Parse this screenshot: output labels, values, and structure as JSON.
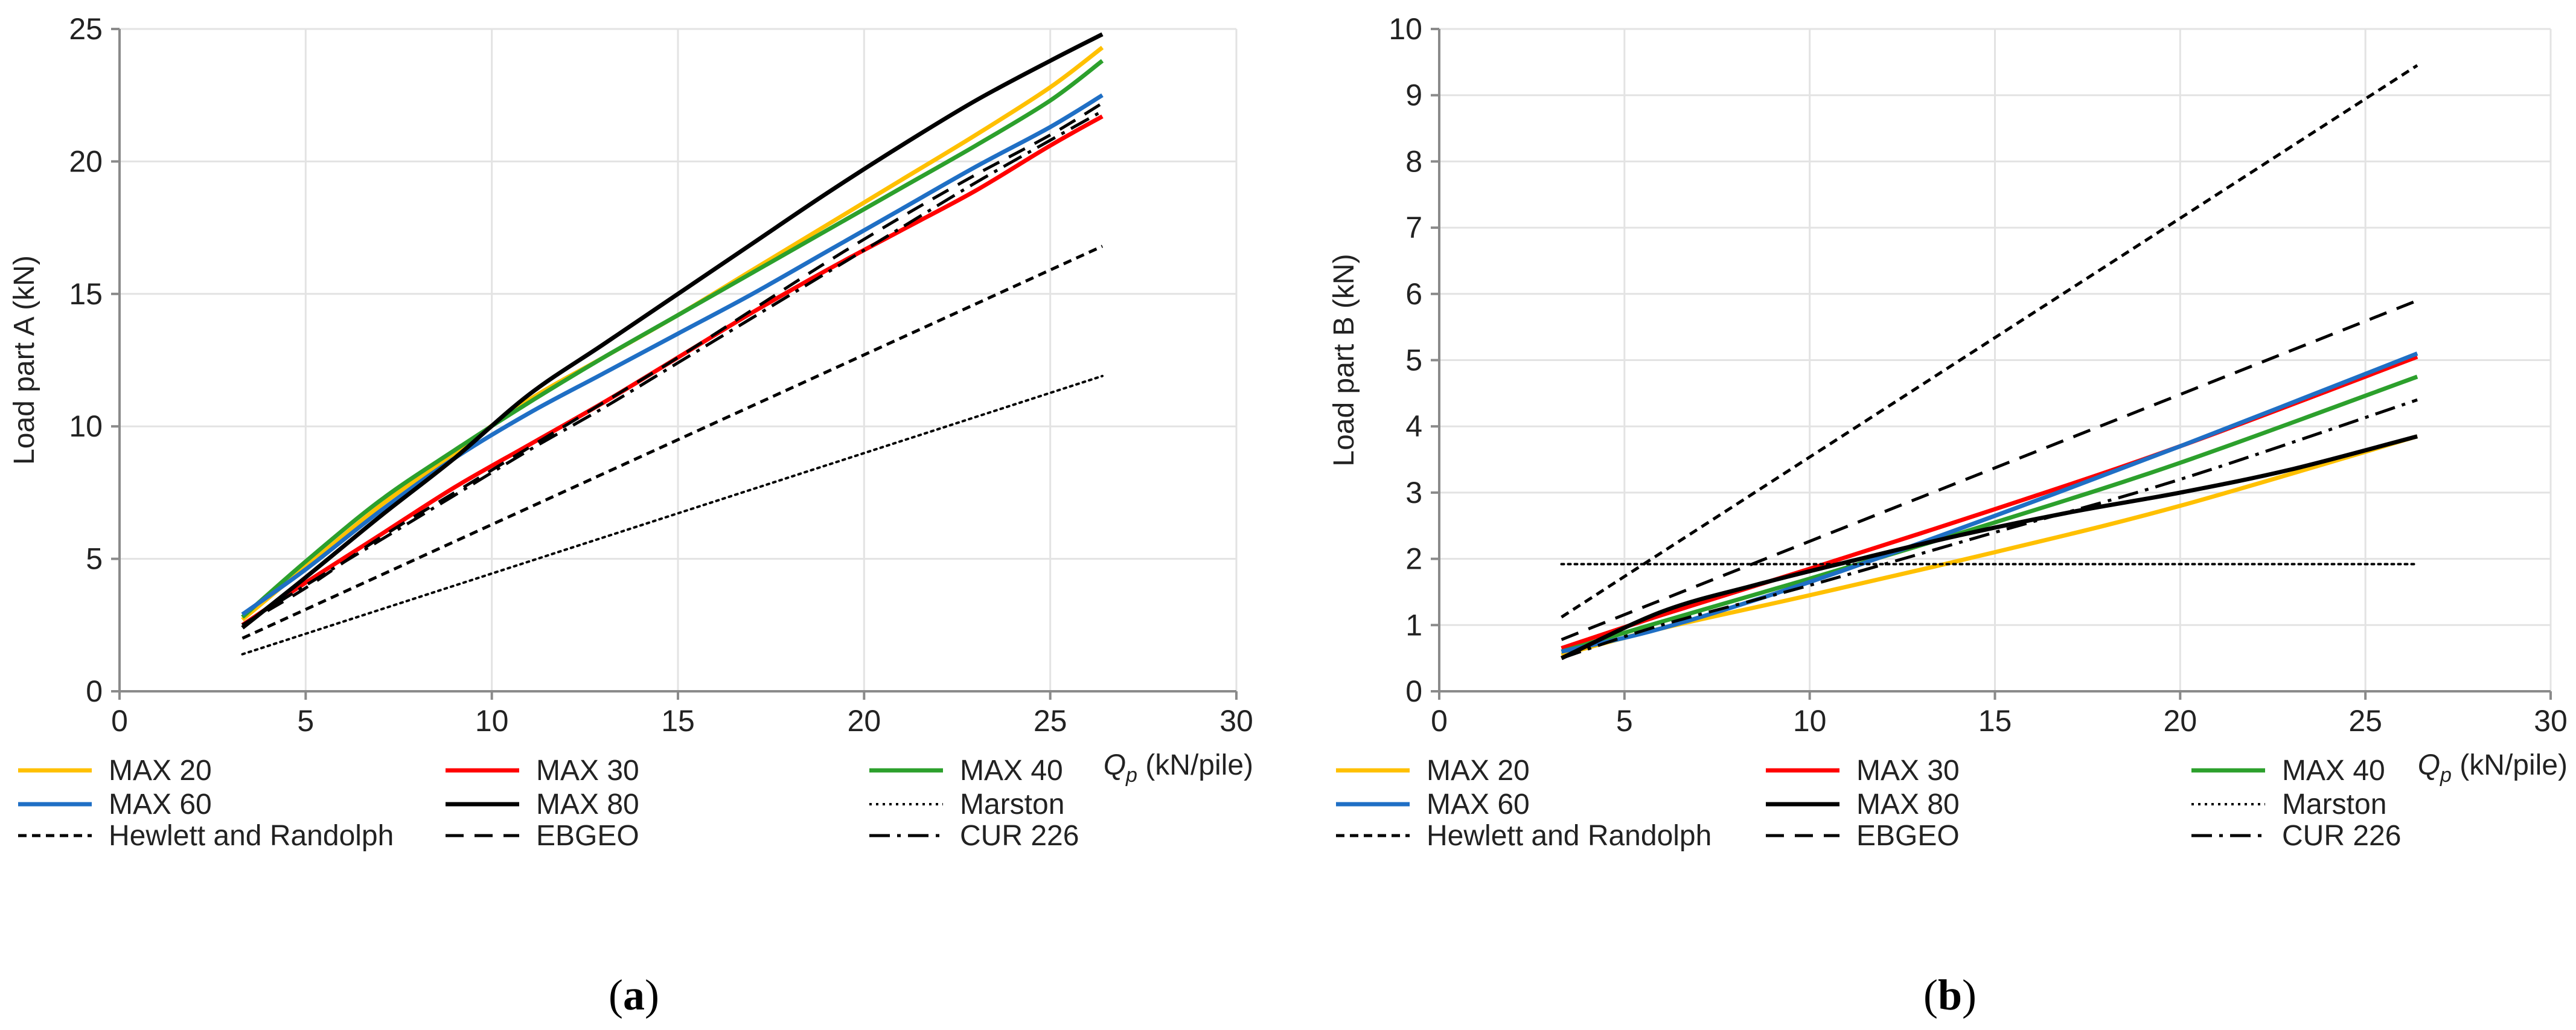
{
  "chart_data": [
    {
      "type": "line",
      "panel_label": "a",
      "title": "",
      "xlabel": {
        "var": "Q",
        "sub": "p",
        "unit": " (kN/pile)"
      },
      "ylabel": "Load part A (kN)",
      "xlim": [
        0,
        30
      ],
      "ylim": [
        0,
        25
      ],
      "xticks": [
        0,
        5,
        10,
        15,
        20,
        25,
        30
      ],
      "yticks": [
        0,
        5,
        10,
        15,
        20,
        25
      ],
      "grid": true,
      "legend_position": "bottom",
      "series": [
        {
          "name": "MAX 20",
          "color": "#FFC000",
          "style": "solid",
          "x": [
            3.3,
            5,
            7,
            9,
            11,
            13,
            15,
            17,
            19,
            21,
            23,
            25,
            26.4
          ],
          "y": [
            2.7,
            4.7,
            7.0,
            9.0,
            11.0,
            12.6,
            14.2,
            15.9,
            17.6,
            19.3,
            21.0,
            22.8,
            24.3
          ]
        },
        {
          "name": "MAX 30",
          "color": "#FF0000",
          "style": "solid",
          "x": [
            3.3,
            5,
            7,
            9,
            11,
            13,
            15,
            17,
            19,
            21,
            23,
            25,
            26.4
          ],
          "y": [
            2.5,
            4.1,
            5.9,
            7.7,
            9.3,
            10.9,
            12.6,
            14.3,
            15.9,
            17.4,
            18.9,
            20.6,
            21.7
          ]
        },
        {
          "name": "MAX 40",
          "color": "#2CA02C",
          "style": "solid",
          "x": [
            3.3,
            5,
            7,
            9,
            11,
            13,
            15,
            17,
            19,
            21,
            23,
            25,
            26.4
          ],
          "y": [
            2.8,
            4.9,
            7.2,
            9.1,
            10.9,
            12.6,
            14.2,
            15.8,
            17.4,
            19.0,
            20.6,
            22.3,
            23.8
          ]
        },
        {
          "name": "MAX 60",
          "color": "#1F6FC5",
          "style": "solid",
          "x": [
            3.3,
            5,
            7,
            9,
            11,
            13,
            15,
            17,
            19,
            21,
            23,
            25,
            26.4
          ],
          "y": [
            2.9,
            4.6,
            6.8,
            8.8,
            10.5,
            12.0,
            13.5,
            15.0,
            16.6,
            18.2,
            19.8,
            21.3,
            22.5
          ]
        },
        {
          "name": "MAX 80",
          "color": "#000000",
          "style": "solid",
          "x": [
            3.3,
            5,
            7,
            9,
            11,
            13,
            15,
            17,
            19,
            21,
            23,
            25,
            26.4
          ],
          "y": [
            2.4,
            4.3,
            6.6,
            8.8,
            11.2,
            13.1,
            15.0,
            16.9,
            18.8,
            20.6,
            22.3,
            23.8,
            24.8
          ]
        },
        {
          "name": "Marston",
          "color": "#000000",
          "style": "dotted",
          "x": [
            3.3,
            26.4
          ],
          "y": [
            1.4,
            11.9
          ]
        },
        {
          "name": "Hewlett and Randolph",
          "color": "#000000",
          "style": "short-dash",
          "x": [
            3.3,
            26.4
          ],
          "y": [
            2.0,
            16.8
          ]
        },
        {
          "name": "EBGEO",
          "color": "#000000",
          "style": "long-dash",
          "x": [
            3.3,
            5,
            7,
            9,
            11,
            13,
            15,
            17,
            19,
            21,
            23,
            25,
            26.4
          ],
          "y": [
            2.5,
            3.9,
            5.8,
            7.5,
            9.2,
            10.9,
            12.6,
            14.4,
            16.2,
            17.9,
            19.5,
            21.0,
            22.2
          ]
        },
        {
          "name": "CUR 226",
          "color": "#000000",
          "style": "dash-dot",
          "x": [
            3.3,
            5,
            7,
            9,
            11,
            13,
            15,
            17,
            19,
            21,
            23,
            25,
            26.4
          ],
          "y": [
            2.5,
            4.0,
            5.7,
            7.4,
            9.1,
            10.7,
            12.4,
            14.1,
            15.8,
            17.5,
            19.2,
            20.8,
            21.9
          ]
        }
      ]
    },
    {
      "type": "line",
      "panel_label": "b",
      "title": "",
      "xlabel": {
        "var": "Q",
        "sub": "p",
        "unit": " (kN/pile)"
      },
      "ylabel": "Load part B (kN)",
      "xlim": [
        0,
        30
      ],
      "ylim": [
        0,
        10
      ],
      "xticks": [
        0,
        5,
        10,
        15,
        20,
        25,
        30
      ],
      "yticks": [
        0,
        1,
        2,
        3,
        4,
        5,
        6,
        7,
        8,
        9,
        10
      ],
      "grid": true,
      "legend_position": "bottom",
      "series": [
        {
          "name": "MAX 20",
          "color": "#FFC000",
          "style": "solid",
          "x": [
            3.3,
            6,
            10,
            15,
            20,
            26.4
          ],
          "y": [
            0.55,
            0.95,
            1.45,
            2.1,
            2.8,
            3.85
          ]
        },
        {
          "name": "MAX 30",
          "color": "#FF0000",
          "style": "solid",
          "x": [
            3.3,
            6,
            10,
            15,
            20,
            26.4
          ],
          "y": [
            0.65,
            1.15,
            1.85,
            2.75,
            3.7,
            5.05
          ]
        },
        {
          "name": "MAX 40",
          "color": "#2CA02C",
          "style": "solid",
          "x": [
            3.3,
            6,
            10,
            15,
            20,
            26.4
          ],
          "y": [
            0.6,
            1.05,
            1.7,
            2.55,
            3.45,
            4.75
          ]
        },
        {
          "name": "MAX 60",
          "color": "#1F6FC5",
          "style": "solid",
          "x": [
            3.3,
            6,
            10,
            15,
            20,
            26.4
          ],
          "y": [
            0.6,
            0.95,
            1.65,
            2.65,
            3.7,
            5.1
          ]
        },
        {
          "name": "MAX 80",
          "color": "#000000",
          "style": "solid",
          "x": [
            3.3,
            6,
            8.5,
            11,
            14,
            17,
            20,
            23,
            26.4
          ],
          "y": [
            0.5,
            1.2,
            1.6,
            1.95,
            2.35,
            2.7,
            3.0,
            3.35,
            3.85
          ]
        },
        {
          "name": "Marston",
          "color": "#000000",
          "style": "dotted",
          "x": [
            3.3,
            26.4
          ],
          "y": [
            1.92,
            1.92
          ]
        },
        {
          "name": "Hewlett and Randolph",
          "color": "#000000",
          "style": "short-dash",
          "x": [
            3.3,
            26.4
          ],
          "y": [
            1.12,
            9.45
          ]
        },
        {
          "name": "EBGEO",
          "color": "#000000",
          "style": "long-dash",
          "x": [
            3.3,
            26.4
          ],
          "y": [
            0.78,
            5.9
          ]
        },
        {
          "name": "CUR 226",
          "color": "#000000",
          "style": "dash-dot",
          "x": [
            3.3,
            6,
            10,
            15,
            20,
            26.4
          ],
          "y": [
            0.5,
            1.0,
            1.6,
            2.4,
            3.2,
            4.4
          ]
        }
      ]
    }
  ]
}
